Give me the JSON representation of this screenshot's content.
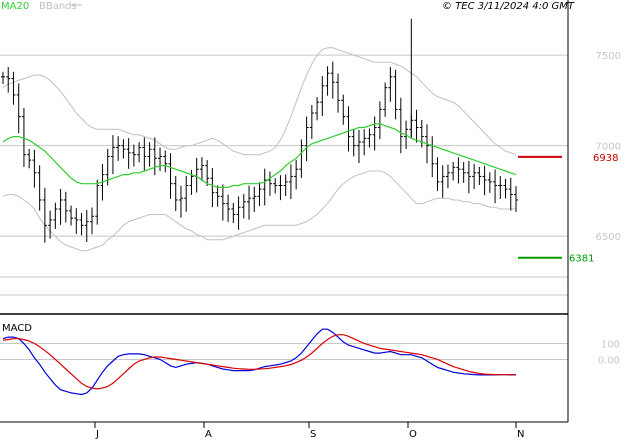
{
  "header": {
    "legend_ma": "MA20",
    "legend_bb": "BBands",
    "info": "© TEC 3/11/2024 4:0 GMT"
  },
  "colors": {
    "bars": "#000000",
    "ma": "#33cc33",
    "bbands": "#c0c0c0",
    "macd": "#0000dd",
    "signal": "#dd0000",
    "grid": "#c8c8c8",
    "resistance": "#cc0000",
    "support": "#009900"
  },
  "chart_data": [
    {
      "type": "ohlc",
      "title": "",
      "x_ticks": [
        "J",
        "A",
        "S",
        "O",
        "N"
      ],
      "y_ticks": [
        7500,
        7000,
        6500
      ],
      "ylim": [
        6120,
        7760
      ],
      "grid": true,
      "indicators": [
        "MA20",
        "BBands"
      ],
      "levels": [
        {
          "label": "6938",
          "value": 6938,
          "role": "resistance"
        },
        {
          "label": "6381",
          "value": 6381,
          "role": "support"
        }
      ],
      "price_close": [
        7380,
        7370,
        7280,
        7160,
        6950,
        6920,
        6850,
        6700,
        6560,
        6590,
        6650,
        6700,
        6640,
        6600,
        6590,
        6560,
        6580,
        6610,
        6780,
        6840,
        6940,
        6990,
        7000,
        6980,
        6960,
        6950,
        6990,
        6940,
        6980,
        6930,
        6940,
        6900,
        6790,
        6700,
        6710,
        6780,
        6830,
        6870,
        6890,
        6820,
        6740,
        6720,
        6680,
        6650,
        6620,
        6660,
        6690,
        6710,
        6720,
        6760,
        6810,
        6790,
        6780,
        6780,
        6800,
        6830,
        6870,
        7000,
        7100,
        7180,
        7240,
        7330,
        7400,
        7350,
        7250,
        7160,
        7050,
        7000,
        7020,
        7040,
        7060,
        7100,
        7200,
        7320,
        7380,
        7200,
        7050,
        7090,
        7140,
        7100,
        7050,
        7000,
        6900,
        6800,
        6830,
        6850,
        6880,
        6870,
        6850,
        6830,
        6850,
        6830,
        6810,
        6800,
        6780,
        6780,
        6760,
        6730,
        6700
      ],
      "bb_upper": [
        7320,
        7340,
        7350,
        7360,
        7370,
        7380,
        7390,
        7390,
        7380,
        7360,
        7330,
        7300,
        7260,
        7220,
        7180,
        7150,
        7120,
        7100,
        7090,
        7090,
        7090,
        7090,
        7090,
        7080,
        7070,
        7060,
        7060,
        7050,
        7040,
        7030,
        7010,
        6990,
        6980,
        6980,
        6990,
        7000,
        7000,
        7010,
        7020,
        7030,
        7040,
        7030,
        7010,
        6990,
        6970,
        6960,
        6950,
        6950,
        6950,
        6950,
        6960,
        6970,
        6990,
        7030,
        7090,
        7160,
        7240,
        7320,
        7390,
        7450,
        7500,
        7530,
        7540,
        7540,
        7530,
        7520,
        7510,
        7500,
        7490,
        7480,
        7470,
        7460,
        7460,
        7460,
        7460,
        7450,
        7440,
        7420,
        7400,
        7380,
        7350,
        7320,
        7290,
        7270,
        7260,
        7250,
        7240,
        7220,
        7190,
        7160,
        7130,
        7100,
        7070,
        7040,
        7010,
        6990,
        6970,
        6960,
        6950
      ],
      "ma20": [
        7020,
        7040,
        7050,
        7050,
        7040,
        7030,
        7010,
        6990,
        6970,
        6940,
        6910,
        6880,
        6850,
        6820,
        6800,
        6790,
        6790,
        6790,
        6790,
        6800,
        6810,
        6820,
        6830,
        6840,
        6840,
        6850,
        6850,
        6860,
        6870,
        6880,
        6890,
        6890,
        6880,
        6870,
        6860,
        6850,
        6840,
        6830,
        6810,
        6790,
        6780,
        6770,
        6770,
        6770,
        6780,
        6780,
        6790,
        6790,
        6790,
        6790,
        6800,
        6820,
        6840,
        6860,
        6890,
        6910,
        6930,
        6960,
        6990,
        7010,
        7020,
        7030,
        7040,
        7050,
        7060,
        7070,
        7080,
        7090,
        7100,
        7100,
        7110,
        7120,
        7120,
        7110,
        7100,
        7090,
        7070,
        7060,
        7040,
        7030,
        7020,
        7010,
        7000,
        6990,
        6980,
        6970,
        6960,
        6950,
        6940,
        6930,
        6920,
        6910,
        6900,
        6890,
        6880,
        6870,
        6860,
        6850,
        6840
      ],
      "bb_lower": [
        6720,
        6730,
        6730,
        6720,
        6700,
        6680,
        6650,
        6600,
        6560,
        6530,
        6500,
        6470,
        6450,
        6440,
        6430,
        6420,
        6420,
        6430,
        6440,
        6450,
        6480,
        6500,
        6530,
        6560,
        6580,
        6590,
        6600,
        6610,
        6620,
        6620,
        6620,
        6620,
        6600,
        6580,
        6560,
        6540,
        6530,
        6510,
        6500,
        6480,
        6480,
        6480,
        6480,
        6490,
        6500,
        6510,
        6520,
        6530,
        6540,
        6550,
        6560,
        6560,
        6560,
        6560,
        6560,
        6560,
        6560,
        6570,
        6580,
        6600,
        6620,
        6650,
        6680,
        6720,
        6760,
        6790,
        6810,
        6830,
        6840,
        6850,
        6860,
        6860,
        6860,
        6850,
        6830,
        6800,
        6770,
        6740,
        6710,
        6680,
        6680,
        6690,
        6700,
        6710,
        6710,
        6710,
        6700,
        6700,
        6690,
        6690,
        6680,
        6680,
        6670,
        6660,
        6660,
        6650,
        6650,
        6650,
        6650
      ]
    },
    {
      "type": "line",
      "title": "MACD",
      "x_ticks": [
        "J",
        "A",
        "S",
        "O",
        "N"
      ],
      "y_ticks": [
        "100",
        "0.00"
      ],
      "ylim": [
        -380,
        260
      ],
      "series": [
        {
          "values": [
            130,
            140,
            140,
            130,
            100,
            60,
            10,
            -30,
            -80,
            -120,
            -160,
            -190,
            -200,
            -210,
            -215,
            -220,
            -210,
            -180,
            -130,
            -80,
            -40,
            -10,
            20,
            30,
            35,
            35,
            35,
            30,
            20,
            10,
            0,
            -20,
            -40,
            -50,
            -40,
            -30,
            -25,
            -20,
            -25,
            -30,
            -40,
            -50,
            -60,
            -65,
            -70,
            -70,
            -70,
            -70,
            -65,
            -55,
            -45,
            -40,
            -35,
            -30,
            -20,
            -10,
            10,
            40,
            80,
            120,
            160,
            190,
            190,
            170,
            140,
            110,
            90,
            80,
            70,
            60,
            50,
            40,
            40,
            45,
            50,
            40,
            30,
            30,
            30,
            20,
            10,
            -10,
            -30,
            -50,
            -60,
            -70,
            -80,
            -85,
            -90,
            -92,
            -95,
            -97,
            -97,
            -97,
            -97,
            -95,
            -95,
            -97,
            -97
          ]
        },
        {
          "values": [
            120,
            125,
            130,
            130,
            125,
            115,
            100,
            80,
            55,
            30,
            0,
            -30,
            -60,
            -90,
            -120,
            -150,
            -170,
            -180,
            -185,
            -180,
            -170,
            -150,
            -120,
            -90,
            -60,
            -30,
            -10,
            0,
            10,
            15,
            15,
            10,
            5,
            0,
            -5,
            -10,
            -15,
            -20,
            -25,
            -30,
            -35,
            -40,
            -45,
            -50,
            -55,
            -58,
            -60,
            -62,
            -62,
            -60,
            -58,
            -55,
            -50,
            -45,
            -40,
            -32,
            -20,
            -5,
            15,
            40,
            70,
            100,
            125,
            145,
            155,
            155,
            145,
            130,
            115,
            100,
            90,
            80,
            70,
            65,
            60,
            55,
            50,
            45,
            40,
            35,
            30,
            20,
            10,
            0,
            -15,
            -30,
            -45,
            -55,
            -65,
            -75,
            -82,
            -88,
            -92,
            -94,
            -95,
            -96,
            -96,
            -96,
            -96
          ]
        }
      ]
    }
  ]
}
